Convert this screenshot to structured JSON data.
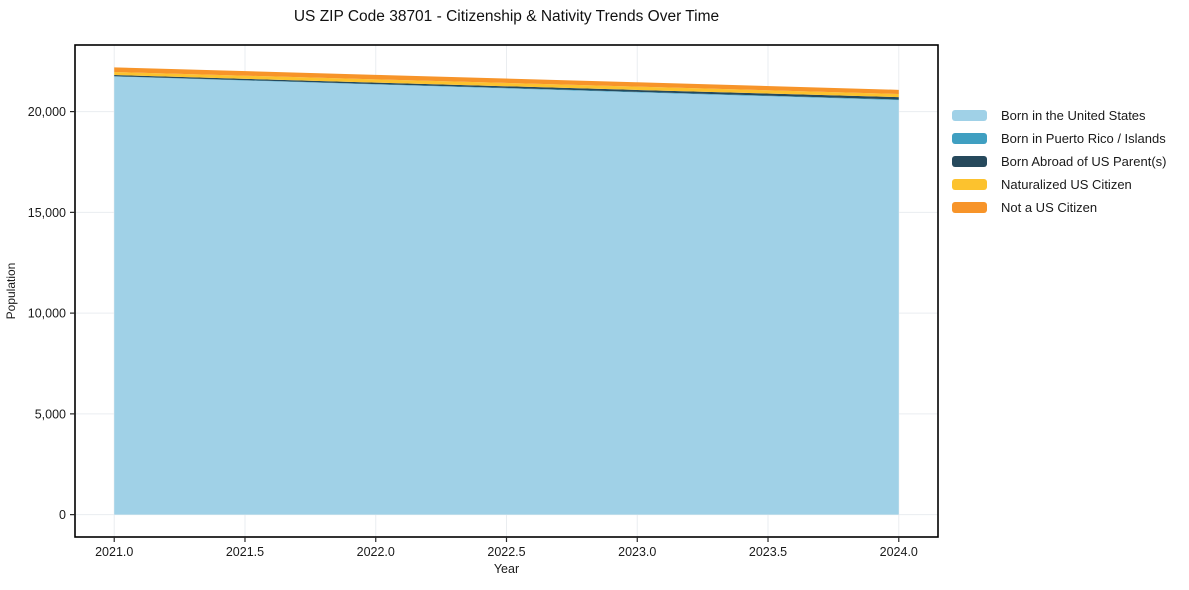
{
  "window": {
    "title": "US ZIP Code 38701 - Citizenship & Nativity Trends Over Time"
  },
  "chart_data": {
    "type": "area",
    "stacked": true,
    "title": "US ZIP Code 38701 - Citizenship & Nativity Trends Over Time",
    "xlabel": "Year",
    "ylabel": "Population",
    "x": [
      2021,
      2022,
      2023,
      2024
    ],
    "series": [
      {
        "name": "Born in the United States",
        "color": "#a0d1e7",
        "values": [
          21740,
          21345,
          20955,
          20570
        ]
      },
      {
        "name": "Born in Puerto Rico / Islands",
        "color": "#3f9fc1",
        "values": [
          15,
          20,
          25,
          30
        ]
      },
      {
        "name": "Born Abroad of US Parent(s)",
        "color": "#26495c",
        "values": [
          60,
          75,
          95,
          120
        ]
      },
      {
        "name": "Naturalized US Citizen",
        "color": "#fcc22e",
        "values": [
          150,
          160,
          165,
          155
        ]
      },
      {
        "name": "Not a US Citizen",
        "color": "#f79429",
        "values": [
          230,
          225,
          215,
          205
        ]
      }
    ],
    "totals_by_year": [
      22195,
      21825,
      21455,
      21080
    ],
    "xlim": [
      2020.85,
      2024.15
    ],
    "ylim": [
      -1110,
      23305
    ],
    "xticks": {
      "values": [
        2021.0,
        2021.5,
        2022.0,
        2022.5,
        2023.0,
        2023.5,
        2024.0
      ],
      "labels": [
        "2021.0",
        "2021.5",
        "2022.0",
        "2022.5",
        "2023.0",
        "2023.5",
        "2024.0"
      ]
    },
    "yticks": {
      "values": [
        0,
        5000,
        10000,
        15000,
        20000
      ],
      "labels": [
        "0",
        "5,000",
        "10,000",
        "15,000",
        "20,000"
      ]
    },
    "grid": true,
    "legend_position": "right"
  },
  "colors": {
    "background": "#ffffff",
    "grid": "#eaedf0",
    "spine": "#000000",
    "tick": "#262626",
    "tick_label": "#1a1a1a"
  }
}
